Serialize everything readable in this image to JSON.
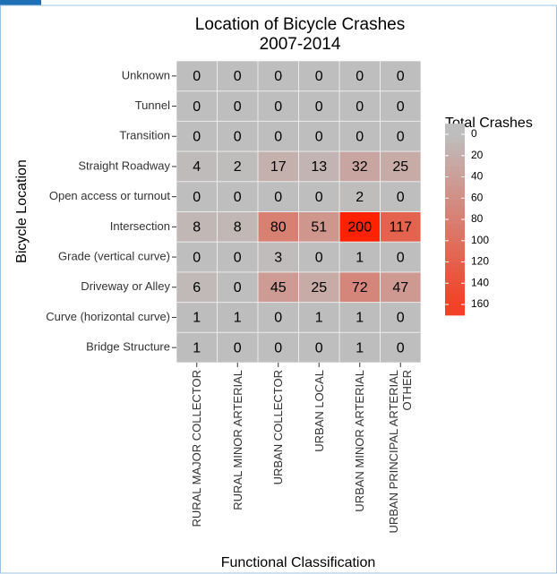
{
  "chart_data": {
    "type": "heatmap",
    "title": "Location of Bicycle Crashes",
    "subtitle": "2007-2014",
    "x_label": "Functional Classification",
    "y_label": "Bicycle Location",
    "legend_title": "Total Crashes",
    "x_categories": [
      "RURAL MAJOR COLLECTOR",
      "RURAL MINOR ARTERIAL",
      "URBAN COLLECTOR",
      "URBAN LOCAL",
      "URBAN MINOR ARTERIAL",
      "URBAN PRINCIPAL ARTERIAL OTHER"
    ],
    "y_categories": [
      "Unknown",
      "Tunnel",
      "Transition",
      "Straight Roadway",
      "Open access or turnout",
      "Intersection",
      "Grade (vertical curve)",
      "Driveway or Alley",
      "Curve (horizontal curve)",
      "Bridge Structure"
    ],
    "values": [
      [
        0,
        0,
        0,
        0,
        0,
        0
      ],
      [
        0,
        0,
        0,
        0,
        0,
        0
      ],
      [
        0,
        0,
        0,
        0,
        0,
        0
      ],
      [
        4,
        2,
        17,
        13,
        32,
        25
      ],
      [
        0,
        0,
        0,
        0,
        2,
        0
      ],
      [
        8,
        8,
        80,
        51,
        200,
        117
      ],
      [
        0,
        0,
        3,
        0,
        1,
        0
      ],
      [
        6,
        0,
        45,
        25,
        72,
        47
      ],
      [
        1,
        1,
        0,
        1,
        1,
        0
      ],
      [
        1,
        0,
        0,
        0,
        1,
        0
      ]
    ],
    "color_low": "#bebebe",
    "color_high": "#ff2200",
    "colorlim": [
      0,
      200
    ],
    "legend_ticks": [
      0,
      20,
      40,
      60,
      80,
      100,
      120,
      140,
      160
    ]
  }
}
